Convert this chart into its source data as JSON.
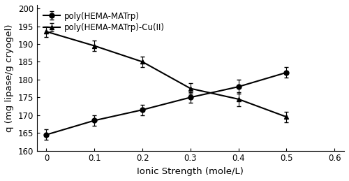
{
  "x": [
    0,
    0.1,
    0.2,
    0.3,
    0.4,
    0.5
  ],
  "series1_y": [
    164.5,
    168.5,
    171.5,
    175.0,
    178.0,
    182.0
  ],
  "series1_yerr": [
    1.5,
    1.5,
    1.5,
    1.5,
    2.0,
    1.5
  ],
  "series1_label": "poly(HEMA-MATrp)",
  "series1_marker": "o",
  "series2_y": [
    193.5,
    189.5,
    185.0,
    177.5,
    174.5,
    169.5
  ],
  "series2_yerr": [
    1.5,
    1.5,
    1.5,
    1.5,
    2.0,
    1.5
  ],
  "series2_label": "poly(HEMA-MATrp)-Cu(II)",
  "series2_marker": "^",
  "xlabel": "Ionic Strength (mole/L)",
  "ylabel": "q (mg lipase/g cryogel)",
  "xlim": [
    -0.02,
    0.62
  ],
  "ylim": [
    160,
    201
  ],
  "yticks": [
    160,
    165,
    170,
    175,
    180,
    185,
    190,
    195,
    200
  ],
  "xticks": [
    0,
    0.1,
    0.2,
    0.3,
    0.4,
    0.5,
    0.6
  ],
  "line_color": "black",
  "marker_size": 5,
  "line_width": 1.5,
  "capsize": 2,
  "elinewidth": 0.8,
  "legend_fontsize": 8.5,
  "axis_fontsize": 9.5,
  "tick_fontsize": 8.5
}
